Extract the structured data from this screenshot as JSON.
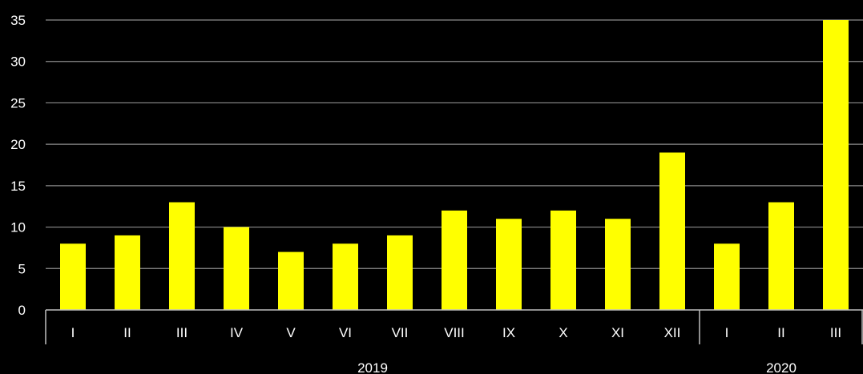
{
  "chart_data": {
    "type": "bar",
    "categories": [
      "I",
      "II",
      "III",
      "IV",
      "V",
      "VI",
      "VII",
      "VIII",
      "IX",
      "X",
      "XI",
      "XII",
      "I",
      "II",
      "III"
    ],
    "groups": [
      {
        "label": "2019",
        "count": 12
      },
      {
        "label": "2020",
        "count": 3
      }
    ],
    "values": [
      8,
      9,
      13,
      10,
      7,
      8,
      9,
      12,
      11,
      12,
      11,
      19,
      8,
      13,
      35
    ],
    "ylim": [
      0,
      35
    ],
    "yticks": [
      "0",
      "5",
      "10",
      "15",
      "20",
      "25",
      "30",
      "35"
    ],
    "grid": true,
    "colors": {
      "bar": "#ffff00",
      "grid": "#8c8c8c",
      "axis": "#bfbfbf",
      "text": "#ffffff",
      "background": "#000000"
    }
  }
}
